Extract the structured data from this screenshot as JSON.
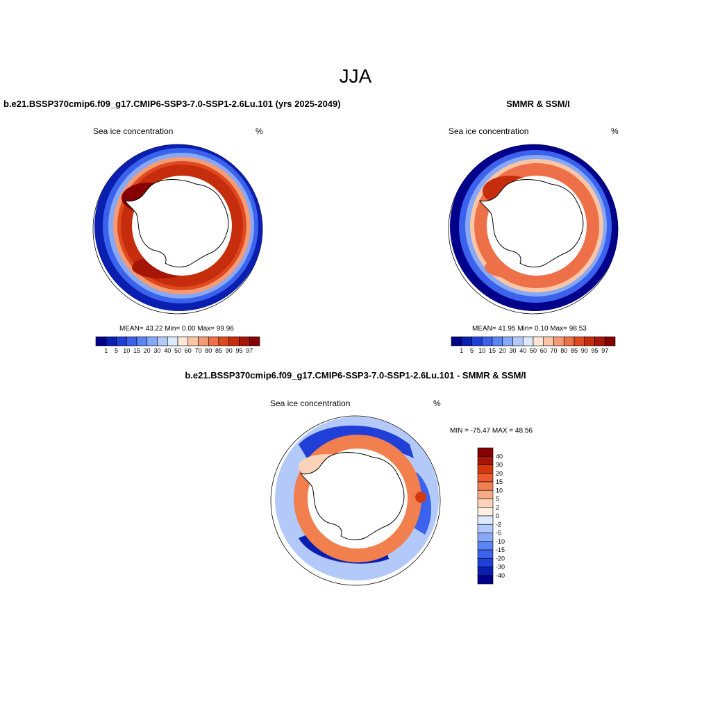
{
  "figure": {
    "title": "JJA"
  },
  "panels": [
    {
      "id": "model",
      "title": "b.e21.BSSP370cmip6.f09_g17.CMIP6-SSP3-7.0-SSP1-2.6Lu.101 (yrs 2025-2049)",
      "left_label": "Sea ice concentration",
      "right_label": "%",
      "stats": "MEAN=  43.22  Min=   0.00  Max=  99.96"
    },
    {
      "id": "obs",
      "title": "SMMR & SSM/I",
      "left_label": "Sea ice concentration",
      "right_label": "%",
      "stats": "MEAN=  41.95  Min=   0.10  Max=  98.53"
    },
    {
      "id": "diff",
      "title": "b.e21.BSSP370cmip6.f09_g17.CMIP6-SSP3-7.0-SSP1-2.6Lu.101 - SMMR & SSM/I",
      "left_label": "Sea ice concentration",
      "right_label": "%",
      "minmax": "MIN = -75.47 MAX =  48.56"
    }
  ],
  "colorbar_conc": {
    "labels": [
      "1",
      "5",
      "10",
      "15",
      "20",
      "30",
      "40",
      "50",
      "60",
      "70",
      "80",
      "85",
      "90",
      "95",
      "97"
    ],
    "colors": [
      "#00008b",
      "#0a1fb0",
      "#1f3fd6",
      "#3a62ec",
      "#5a85f2",
      "#86a8f6",
      "#b3c9fa",
      "#dde9fd",
      "#fde6d3",
      "#fbc6a6",
      "#f59b74",
      "#ee7049",
      "#e0481f",
      "#c52d0c",
      "#a51606",
      "#860000"
    ]
  },
  "colorbar_diff": {
    "labels": [
      "40",
      "30",
      "20",
      "15",
      "10",
      "5",
      "2",
      "0",
      "-2",
      "-5",
      "-10",
      "-15",
      "-20",
      "-30",
      "-40"
    ],
    "colors": [
      "#860000",
      "#a51606",
      "#d3390f",
      "#ec5a2d",
      "#f2804f",
      "#f7ab85",
      "#fcd2b8",
      "#fdeee2",
      "#dde9fd",
      "#b3c9fa",
      "#86a8f6",
      "#5a85f2",
      "#3a62ec",
      "#1f3fd6",
      "#0a1fb0",
      "#00008b"
    ]
  }
}
